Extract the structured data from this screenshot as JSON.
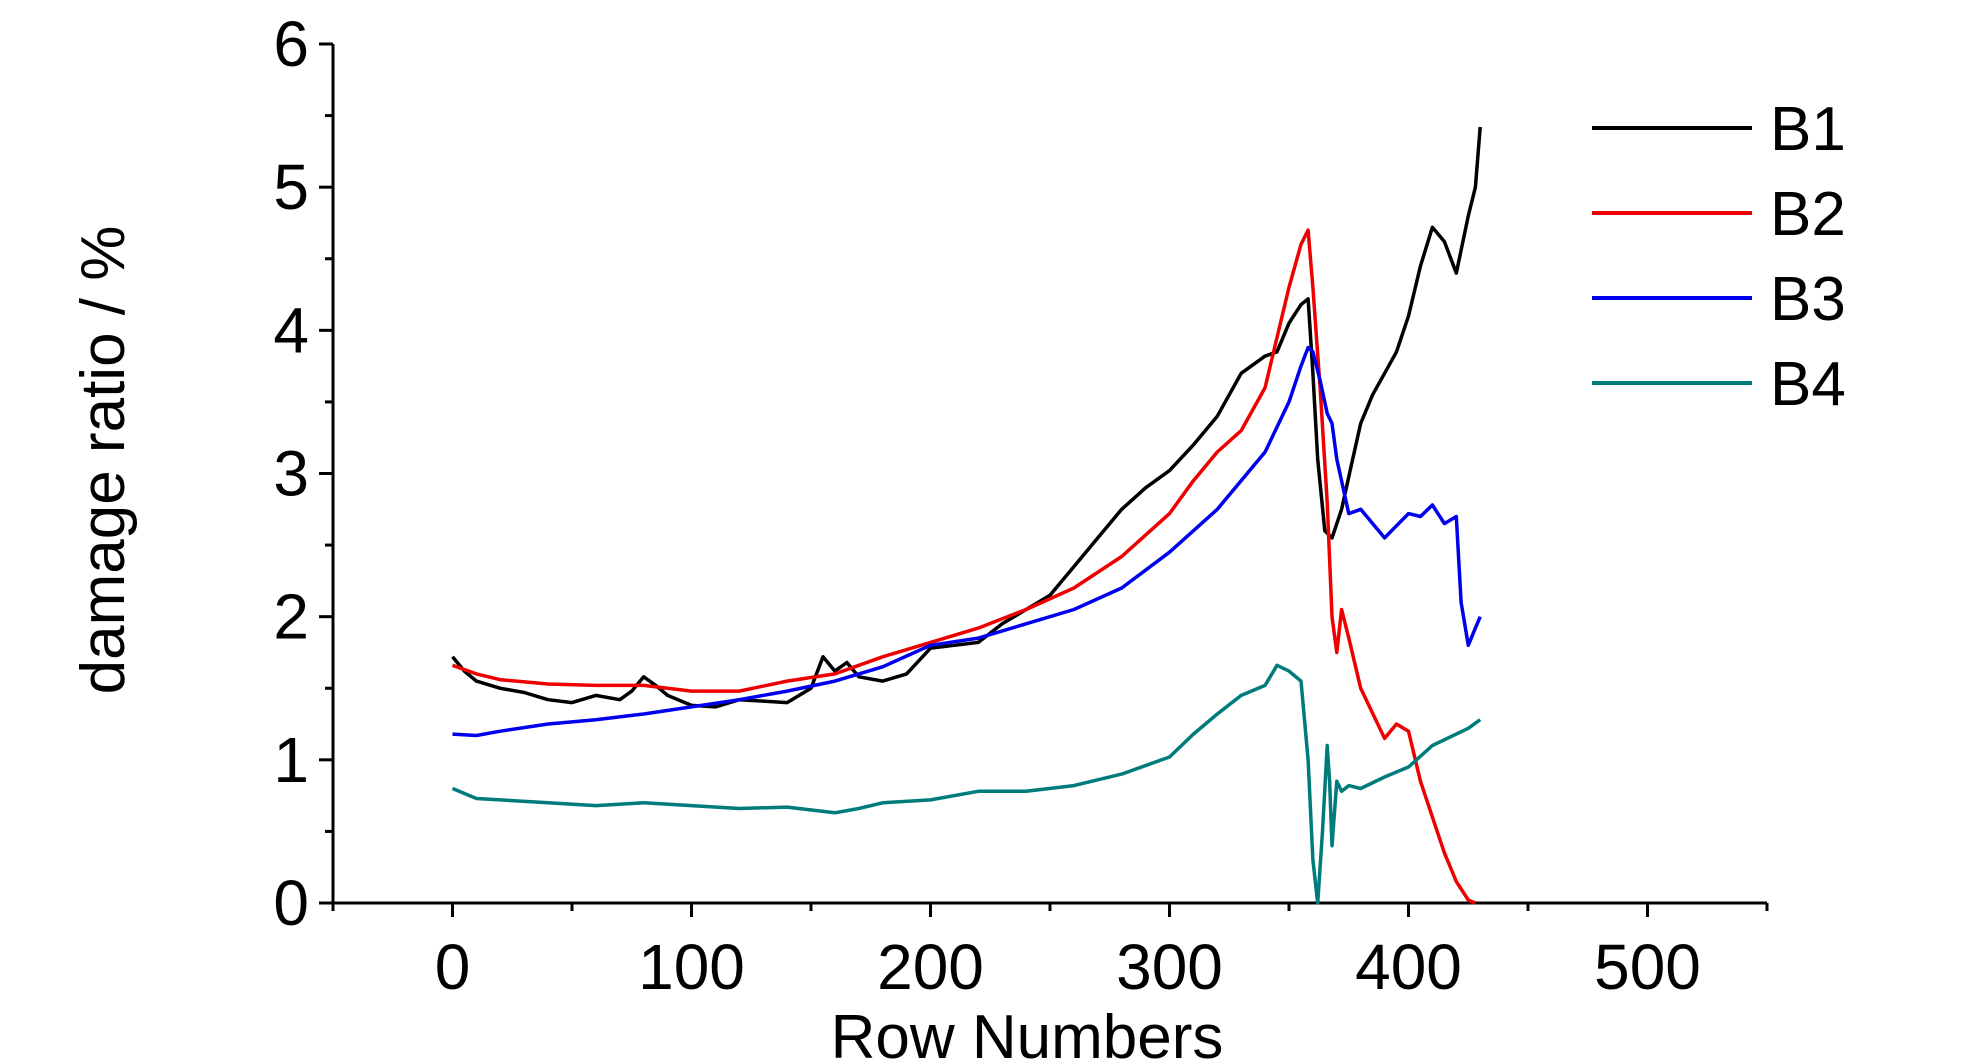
{
  "chart_data": {
    "type": "line",
    "title": "",
    "xlabel": "Row Numbers",
    "ylabel": "damage ratio / %",
    "xlim": [
      -50,
      550
    ],
    "ylim": [
      0,
      6
    ],
    "xticks": [
      0,
      100,
      200,
      300,
      400,
      500
    ],
    "yticks": [
      0,
      1,
      2,
      3,
      4,
      5,
      6
    ],
    "grid": false,
    "legend_position": "top-right",
    "series": [
      {
        "name": "B1",
        "color": "#000000",
        "x": [
          0,
          5,
          10,
          20,
          30,
          40,
          50,
          60,
          70,
          75,
          80,
          85,
          90,
          100,
          110,
          120,
          130,
          140,
          150,
          155,
          160,
          165,
          170,
          180,
          190,
          200,
          210,
          220,
          230,
          240,
          250,
          260,
          270,
          280,
          290,
          300,
          310,
          320,
          330,
          340,
          345,
          350,
          355,
          358,
          360,
          362,
          365,
          368,
          372,
          376,
          380,
          385,
          390,
          395,
          400,
          405,
          410,
          415,
          420,
          425,
          428,
          430
        ],
        "y": [
          1.72,
          1.62,
          1.55,
          1.5,
          1.47,
          1.42,
          1.4,
          1.45,
          1.42,
          1.48,
          1.58,
          1.52,
          1.45,
          1.38,
          1.37,
          1.42,
          1.41,
          1.4,
          1.5,
          1.72,
          1.62,
          1.68,
          1.58,
          1.55,
          1.6,
          1.78,
          1.8,
          1.82,
          1.95,
          2.05,
          2.15,
          2.35,
          2.55,
          2.75,
          2.9,
          3.02,
          3.2,
          3.4,
          3.7,
          3.82,
          3.85,
          4.05,
          4.18,
          4.22,
          3.7,
          3.1,
          2.6,
          2.55,
          2.75,
          3.05,
          3.35,
          3.55,
          3.7,
          3.85,
          4.1,
          4.45,
          4.72,
          4.62,
          4.4,
          4.8,
          5.0,
          5.42
        ]
      },
      {
        "name": "B2",
        "color": "#ee0000",
        "x": [
          0,
          10,
          20,
          40,
          60,
          80,
          100,
          120,
          140,
          160,
          180,
          200,
          220,
          240,
          260,
          280,
          300,
          310,
          320,
          330,
          340,
          345,
          350,
          355,
          358,
          360,
          363,
          366,
          368,
          370,
          372,
          375,
          380,
          390,
          395,
          400,
          405,
          410,
          415,
          420,
          425,
          428
        ],
        "y": [
          1.66,
          1.6,
          1.56,
          1.53,
          1.52,
          1.52,
          1.48,
          1.48,
          1.55,
          1.6,
          1.72,
          1.82,
          1.92,
          2.05,
          2.2,
          2.42,
          2.72,
          2.95,
          3.15,
          3.3,
          3.6,
          3.95,
          4.3,
          4.6,
          4.7,
          4.3,
          3.6,
          2.8,
          2.0,
          1.75,
          2.05,
          1.85,
          1.5,
          1.15,
          1.25,
          1.2,
          0.85,
          0.6,
          0.35,
          0.15,
          0.02,
          0.0
        ]
      },
      {
        "name": "B3",
        "color": "#0000ee",
        "x": [
          0,
          10,
          20,
          40,
          60,
          80,
          100,
          120,
          140,
          160,
          180,
          200,
          220,
          240,
          260,
          280,
          300,
          320,
          340,
          350,
          355,
          358,
          360,
          363,
          366,
          368,
          370,
          375,
          380,
          390,
          400,
          405,
          410,
          415,
          420,
          422,
          425,
          428,
          430
        ],
        "y": [
          1.18,
          1.17,
          1.2,
          1.25,
          1.28,
          1.32,
          1.37,
          1.42,
          1.48,
          1.55,
          1.65,
          1.8,
          1.85,
          1.95,
          2.05,
          2.2,
          2.45,
          2.75,
          3.15,
          3.5,
          3.75,
          3.88,
          3.85,
          3.65,
          3.42,
          3.35,
          3.1,
          2.72,
          2.75,
          2.55,
          2.72,
          2.7,
          2.78,
          2.65,
          2.7,
          2.1,
          1.8,
          1.92,
          2.0
        ]
      },
      {
        "name": "B4",
        "color": "#007b7b",
        "x": [
          0,
          10,
          20,
          40,
          60,
          80,
          100,
          120,
          140,
          160,
          170,
          180,
          200,
          220,
          240,
          260,
          280,
          300,
          310,
          320,
          330,
          340,
          345,
          350,
          355,
          358,
          360,
          362,
          364,
          366,
          367,
          368,
          370,
          372,
          375,
          380,
          390,
          400,
          410,
          420,
          425,
          430
        ],
        "y": [
          0.8,
          0.73,
          0.72,
          0.7,
          0.68,
          0.7,
          0.68,
          0.66,
          0.67,
          0.63,
          0.66,
          0.7,
          0.72,
          0.78,
          0.78,
          0.82,
          0.9,
          1.02,
          1.18,
          1.32,
          1.45,
          1.52,
          1.66,
          1.62,
          1.55,
          1.0,
          0.3,
          0.0,
          0.5,
          1.1,
          0.85,
          0.4,
          0.85,
          0.78,
          0.82,
          0.8,
          0.88,
          0.95,
          1.1,
          1.18,
          1.22,
          1.28
        ]
      }
    ]
  }
}
